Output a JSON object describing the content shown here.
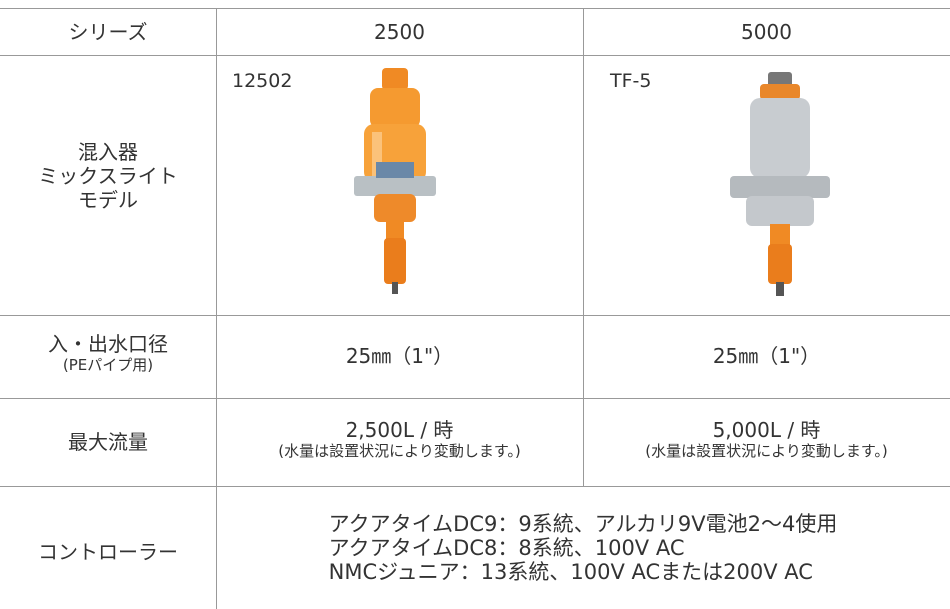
{
  "table": {
    "header": [
      "シリーズ",
      "2500",
      "5000"
    ],
    "rows": [
      {
        "label": [
          "混入器",
          "ミックスライト",
          "モデル"
        ],
        "cells": [
          [
            "12502"
          ],
          [
            "TF-5"
          ]
        ]
      },
      {
        "label": [
          "入・出水口径",
          "(PEパイプ用)"
        ],
        "cells": [
          [
            "25㎜（1\"）"
          ],
          [
            "25㎜（1\"）"
          ]
        ]
      },
      {
        "label": [
          "最大流量"
        ],
        "cells": [
          [
            "2,500L / 時",
            "(水量は設置状況により変動します。)"
          ],
          [
            "5,000L / 時",
            "(水量は設置状況により変動します。)"
          ]
        ]
      },
      {
        "label": [
          "コントローラー"
        ],
        "cells": [
          [
            "アクアタイムDC9：9系統、アルカリ9V電池2～4使用",
            "アクアタイムDC8：8系統、100V AC",
            "NMCジュニア：13系統、100V ACまたは200V AC"
          ]
        ]
      }
    ]
  }
}
